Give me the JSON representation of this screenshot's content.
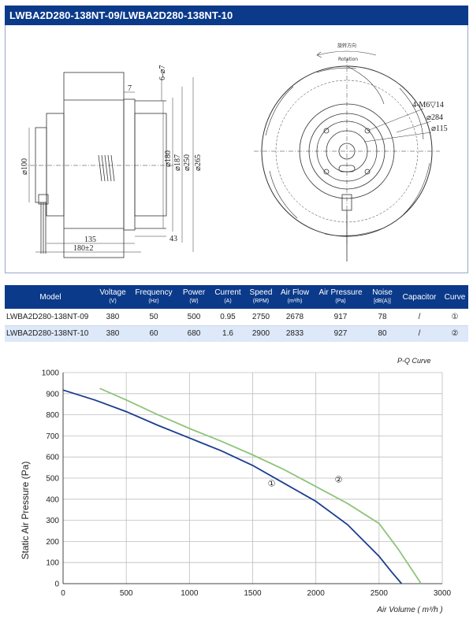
{
  "header": {
    "title": "LWBA2D280-138NT-09/LWBA2D280-138NT-10"
  },
  "drawing": {
    "side_view": {
      "dims": [
        "7",
        "6-⌀7",
        "⌀100",
        "⌀180",
        "⌀187",
        "⌀250",
        "⌀265",
        "135",
        "180±2",
        "43"
      ]
    },
    "front_view": {
      "rotation_cn": "旋转方向",
      "rotation_en": "Rotation",
      "dims": [
        "4-M6▽14",
        "⌀284",
        "⌀115"
      ]
    }
  },
  "table": {
    "headers": [
      {
        "label": "Model",
        "unit": ""
      },
      {
        "label": "Voltage",
        "unit": "(V)"
      },
      {
        "label": "Frequency",
        "unit": "(Hz)"
      },
      {
        "label": "Power",
        "unit": "(W)"
      },
      {
        "label": "Current",
        "unit": "(A)"
      },
      {
        "label": "Speed",
        "unit": "(RPM)"
      },
      {
        "label": "Air Flow",
        "unit": "(m³/h)"
      },
      {
        "label": "Air Pressure",
        "unit": "(Pa)"
      },
      {
        "label": "Noise",
        "unit": "[dB(A)]"
      },
      {
        "label": "Capacitor",
        "unit": ""
      },
      {
        "label": "Curve",
        "unit": ""
      }
    ],
    "rows": [
      [
        "LWBA2D280-138NT-09",
        "380",
        "50",
        "500",
        "0.95",
        "2750",
        "2678",
        "917",
        "78",
        "/",
        "①"
      ],
      [
        "LWBA2D280-138NT-10",
        "380",
        "60",
        "680",
        "1.6",
        "2900",
        "2833",
        "927",
        "80",
        "/",
        "②"
      ]
    ]
  },
  "chart_data": {
    "type": "line",
    "title": "P-Q Curve",
    "xlabel": "Air Volume ( m³/h )",
    "ylabel": "Static Air Pressure  (Pa)",
    "xlim": [
      0,
      3000
    ],
    "ylim": [
      0,
      1000
    ],
    "x_ticks": [
      0,
      500,
      1000,
      1500,
      2000,
      2500,
      3000
    ],
    "y_ticks": [
      0,
      100,
      200,
      300,
      400,
      500,
      600,
      700,
      800,
      900,
      1000
    ],
    "grid": true,
    "series": [
      {
        "name": "①",
        "color": "#1a3d8f",
        "x": [
          0,
          250,
          500,
          750,
          1000,
          1250,
          1500,
          1750,
          2000,
          2250,
          2500,
          2600,
          2678
        ],
        "y": [
          917,
          870,
          815,
          750,
          690,
          630,
          560,
          475,
          390,
          280,
          130,
          55,
          0
        ]
      },
      {
        "name": "②",
        "color": "#8fc47a",
        "x": [
          290,
          500,
          750,
          1000,
          1250,
          1500,
          1750,
          2000,
          2250,
          2500,
          2650,
          2750,
          2833
        ],
        "y": [
          925,
          870,
          800,
          735,
          675,
          610,
          540,
          460,
          380,
          285,
          165,
          75,
          0
        ]
      }
    ]
  }
}
